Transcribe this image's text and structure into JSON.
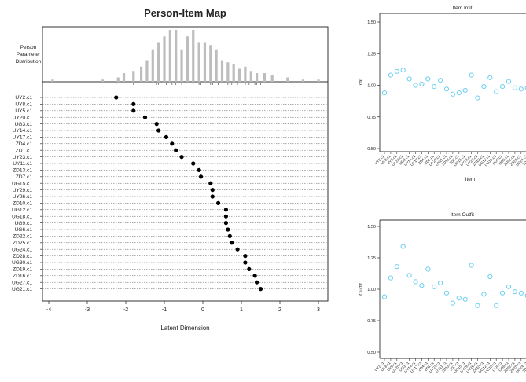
{
  "chart_data": [
    {
      "type": "scatter",
      "title": "Person-Item Map",
      "xlabel": "Latent Dimension",
      "distribution_label": [
        "Person",
        "Parameter",
        "Distribution"
      ],
      "xlim": [
        -4,
        3
      ],
      "xticks": [
        -4,
        -3,
        -2,
        -1,
        0,
        1,
        2,
        3
      ],
      "items": [
        "UY2.c1",
        "UY8.c1",
        "UY5.c1",
        "UY20.c1",
        "UG3.c1",
        "UY14.c1",
        "UY17.c1",
        "ZD4.c1",
        "ZD1.c1",
        "UY23.c1",
        "UY11.c1",
        "ZD13.c1",
        "ZD7.c1",
        "UG15.c1",
        "UY29.c1",
        "UY26.c1",
        "ZD10.c1",
        "UG12.c1",
        "UG18.c1",
        "UG9.c1",
        "UG6.c1",
        "ZD22.c1",
        "ZD25.c1",
        "UG24.c1",
        "ZD28.c1",
        "UG30.c1",
        "ZD19.c1",
        "ZD16.c1",
        "UG27.c1",
        "UG21.c1"
      ],
      "locations": [
        -2.25,
        -1.8,
        -1.8,
        -1.5,
        -1.2,
        -1.15,
        -0.95,
        -0.8,
        -0.7,
        -0.55,
        -0.25,
        -0.1,
        -0.05,
        0.2,
        0.25,
        0.25,
        0.4,
        0.6,
        0.6,
        0.6,
        0.65,
        0.7,
        0.75,
        0.9,
        1.1,
        1.1,
        1.2,
        1.35,
        1.4,
        1.5
      ],
      "person_distribution": {
        "x": [
          -3.9,
          -2.6,
          -2.2,
          -2.05,
          -1.8,
          -1.6,
          -1.45,
          -1.3,
          -1.15,
          -1.0,
          -0.85,
          -0.7,
          -0.55,
          -0.4,
          -0.25,
          -0.1,
          0.05,
          0.2,
          0.35,
          0.5,
          0.65,
          0.8,
          0.95,
          1.1,
          1.25,
          1.4,
          1.6,
          1.8,
          2.2,
          2.6,
          3.0
        ],
        "counts": [
          1,
          1,
          2,
          4,
          5,
          7,
          10,
          15,
          18,
          21,
          24,
          24,
          15,
          21,
          24,
          18,
          18,
          17,
          15,
          10,
          9,
          8,
          6,
          7,
          5,
          4,
          4,
          3,
          2,
          1,
          1
        ]
      }
    },
    {
      "type": "scatter",
      "title": "Item Infit",
      "xlabel": "Item",
      "ylabel": "Infit",
      "ylim": [
        0.5,
        1.5
      ],
      "yticks": [
        0.5,
        0.75,
        1.0,
        1.25,
        1.5
      ],
      "ytick_labels": [
        "0.50",
        "0.75",
        "1.00",
        "1.25",
        "1.50"
      ],
      "color": "#6ccff0",
      "values": [
        0.94,
        1.08,
        1.11,
        1.12,
        1.05,
        1.0,
        1.01,
        1.05,
        0.99,
        1.04,
        0.97,
        0.93,
        0.94,
        0.96,
        1.08,
        0.9,
        0.99,
        1.06,
        0.95,
        0.99,
        1.03,
        0.98,
        0.97,
        0.98,
        0.93,
        0.91,
        1.03,
        1.01,
        0.97,
        1.0
      ]
    },
    {
      "type": "scatter",
      "title": "Item Outfit",
      "xlabel": "Item",
      "ylabel": "Outfit",
      "ylim": [
        0.5,
        1.5
      ],
      "yticks": [
        0.5,
        0.75,
        1.0,
        1.25,
        1.5
      ],
      "ytick_labels": [
        "0.50",
        "0.75",
        "1.00",
        "1.25",
        "1.50"
      ],
      "color": "#6ccff0",
      "values": [
        0.94,
        1.09,
        1.18,
        1.34,
        1.11,
        1.06,
        1.03,
        1.16,
        1.02,
        1.05,
        0.97,
        0.89,
        0.93,
        0.92,
        1.19,
        0.87,
        0.96,
        1.1,
        0.87,
        0.97,
        1.02,
        0.98,
        0.97,
        0.95,
        0.92,
        0.91,
        1.08,
        1.1,
        0.95,
        0.97
      ]
    }
  ]
}
